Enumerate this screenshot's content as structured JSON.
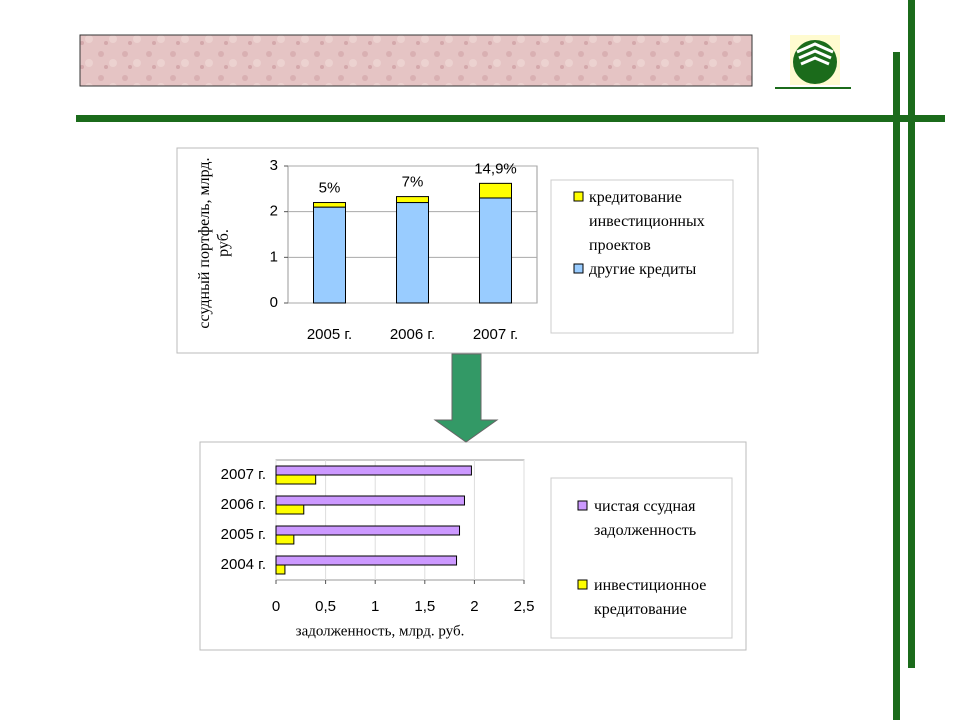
{
  "chart_data": [
    {
      "type": "bar",
      "stacked": true,
      "ylabel": "ссудный портфель, млрд. руб.",
      "categories": [
        "2005 г.",
        "2006 г.",
        "2007 г."
      ],
      "series": [
        {
          "name": "другие кредиты",
          "color": "#99ccff",
          "values": [
            2.1,
            2.2,
            2.3
          ]
        },
        {
          "name": "кредитование инвестиционных проектов",
          "color": "#ffff00",
          "values": [
            0.1,
            0.13,
            0.32
          ]
        }
      ],
      "annotations": [
        "5%",
        "7%",
        "14,9%"
      ],
      "ylim": [
        0,
        3
      ],
      "yticks": [
        0,
        1,
        2,
        3
      ],
      "grid": true
    },
    {
      "type": "barh",
      "xlabel": "задолженность, млрд. руб.",
      "categories": [
        "2004 г.",
        "2005 г.",
        "2006 г.",
        "2007 г."
      ],
      "series": [
        {
          "name": "чистая ссудная задолженность",
          "color": "#cc99ff",
          "values": [
            1.82,
            1.85,
            1.9,
            1.97
          ]
        },
        {
          "name": "инвестиционное кредитование",
          "color": "#ffff00",
          "values": [
            0.09,
            0.18,
            0.28,
            0.4
          ]
        }
      ],
      "xlim": [
        0,
        2.5
      ],
      "xticks": [
        0,
        {
          "value": 0.5,
          "label": "0,5"
        },
        1,
        {
          "value": 1.5,
          "label": "1,5"
        },
        2,
        {
          "value": 2.5,
          "label": "2,5"
        }
      ],
      "grid": true
    }
  ]
}
